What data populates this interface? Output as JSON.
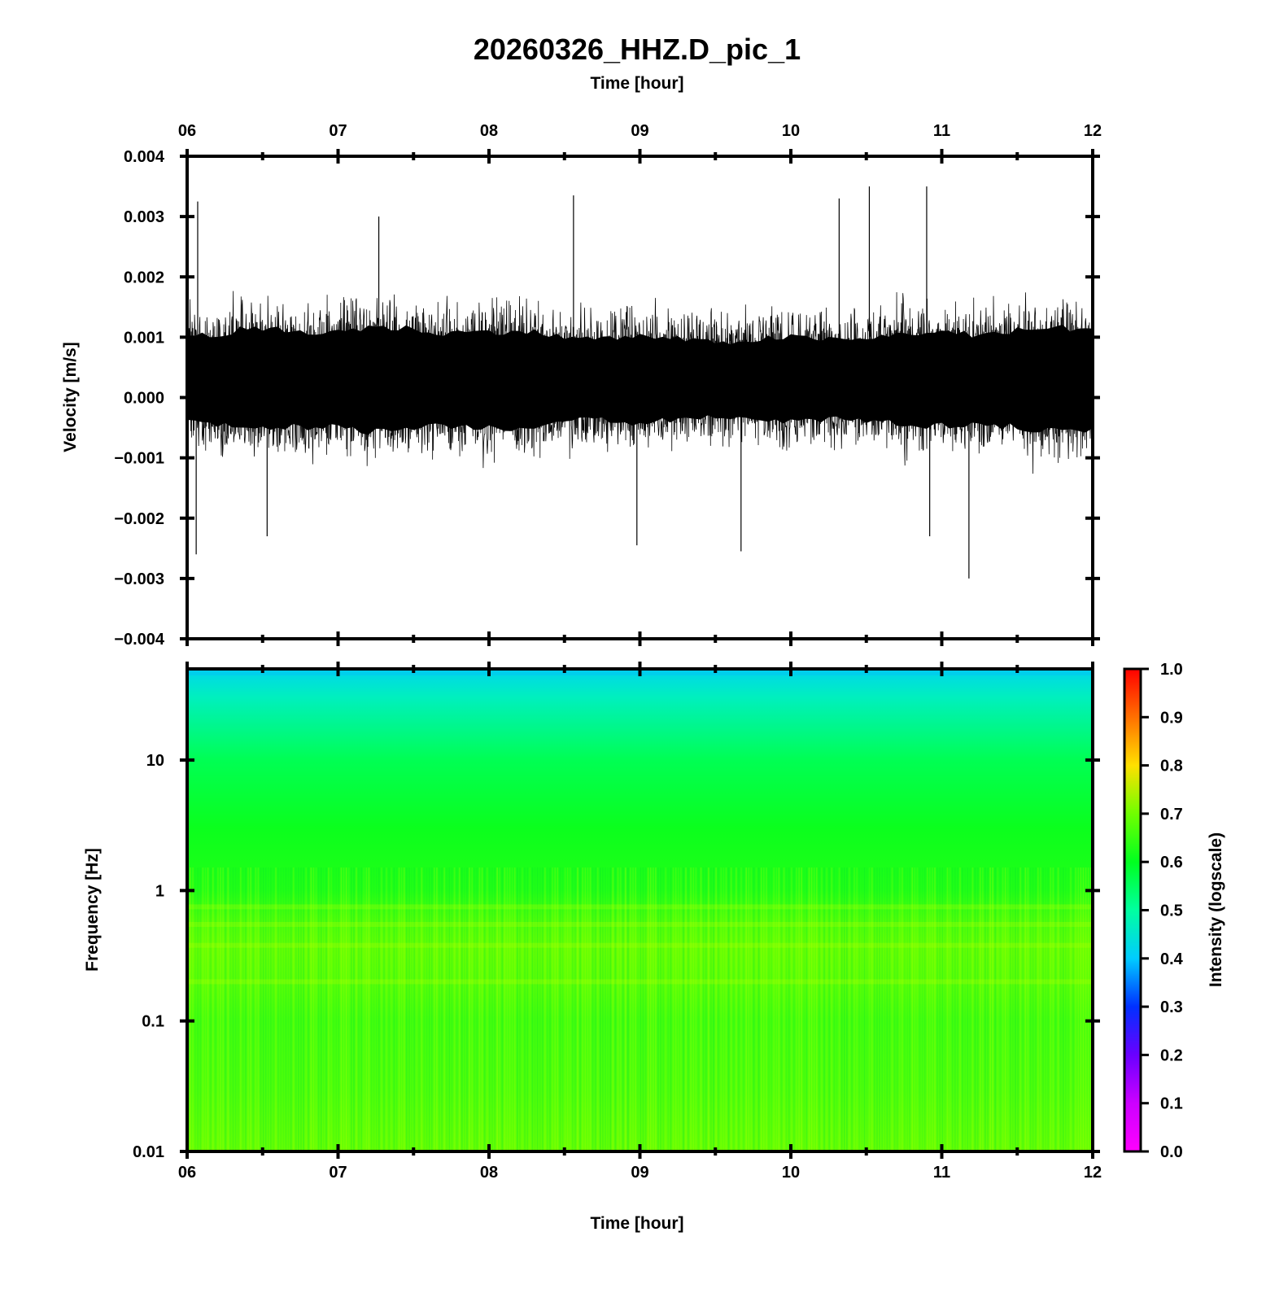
{
  "title": "20260326_HHZ.D_pic_1",
  "colors": {
    "waveform": "#000000",
    "frame": "#000000"
  },
  "chart_data": [
    {
      "type": "line",
      "panel": "waveform",
      "xlabel": "Time [hour]",
      "ylabel": "Velocity [m/s]",
      "x_unit": "hour",
      "xlim": [
        6,
        12
      ],
      "ylim": [
        -0.004,
        0.004
      ],
      "x_ticks": [
        "06",
        "07",
        "08",
        "09",
        "10",
        "11",
        "12"
      ],
      "y_ticks": [
        "0.004",
        "0.003",
        "0.002",
        "0.001",
        "0.000",
        "−0.001",
        "−0.002",
        "−0.003",
        "−0.004"
      ],
      "x_axis_position": "top",
      "grid": false,
      "envelope": {
        "baseline": 0.0003,
        "band_upper": 0.0011,
        "band_lower": -0.0005,
        "typical_peak_max": 0.0024,
        "typical_peak_min": -0.0017
      },
      "spikes": [
        {
          "x": 6.07,
          "y": 0.00325
        },
        {
          "x": 6.06,
          "y": -0.0026
        },
        {
          "x": 6.53,
          "y": -0.0023
        },
        {
          "x": 7.27,
          "y": 0.003
        },
        {
          "x": 8.56,
          "y": 0.00335
        },
        {
          "x": 8.98,
          "y": -0.00245
        },
        {
          "x": 9.67,
          "y": -0.00255
        },
        {
          "x": 10.32,
          "y": 0.0033
        },
        {
          "x": 10.52,
          "y": 0.0035
        },
        {
          "x": 10.9,
          "y": 0.0035
        },
        {
          "x": 10.92,
          "y": -0.0023
        },
        {
          "x": 11.18,
          "y": -0.003
        }
      ]
    },
    {
      "type": "heatmap",
      "panel": "spectrogram",
      "xlabel": "Time [hour]",
      "ylabel": "Frequency [Hz]",
      "x_unit": "hour",
      "xlim": [
        6,
        12
      ],
      "ylim": [
        0.01,
        50
      ],
      "y_scale": "log",
      "x_ticks": [
        "06",
        "07",
        "08",
        "09",
        "10",
        "11",
        "12"
      ],
      "y_ticks": [
        "10",
        "1",
        "0.1",
        "0.01"
      ],
      "colormap": "rainbow",
      "intensity_profile": [
        {
          "f": 50,
          "v": 0.42
        },
        {
          "f": 30,
          "v": 0.47
        },
        {
          "f": 10,
          "v": 0.56
        },
        {
          "f": 3,
          "v": 0.61
        },
        {
          "f": 1,
          "v": 0.63
        },
        {
          "f": 0.6,
          "v": 0.67
        },
        {
          "f": 0.35,
          "v": 0.69
        },
        {
          "f": 0.2,
          "v": 0.68
        },
        {
          "f": 0.1,
          "v": 0.66
        },
        {
          "f": 0.03,
          "v": 0.67
        },
        {
          "f": 0.01,
          "v": 0.69
        }
      ],
      "colorbar": {
        "label": "Intensity (logscale)",
        "range": [
          0.0,
          1.0
        ],
        "ticks": [
          "1.0",
          "0.9",
          "0.8",
          "0.7",
          "0.6",
          "0.5",
          "0.4",
          "0.3",
          "0.2",
          "0.1",
          "0.0"
        ],
        "placement": "right"
      }
    }
  ]
}
